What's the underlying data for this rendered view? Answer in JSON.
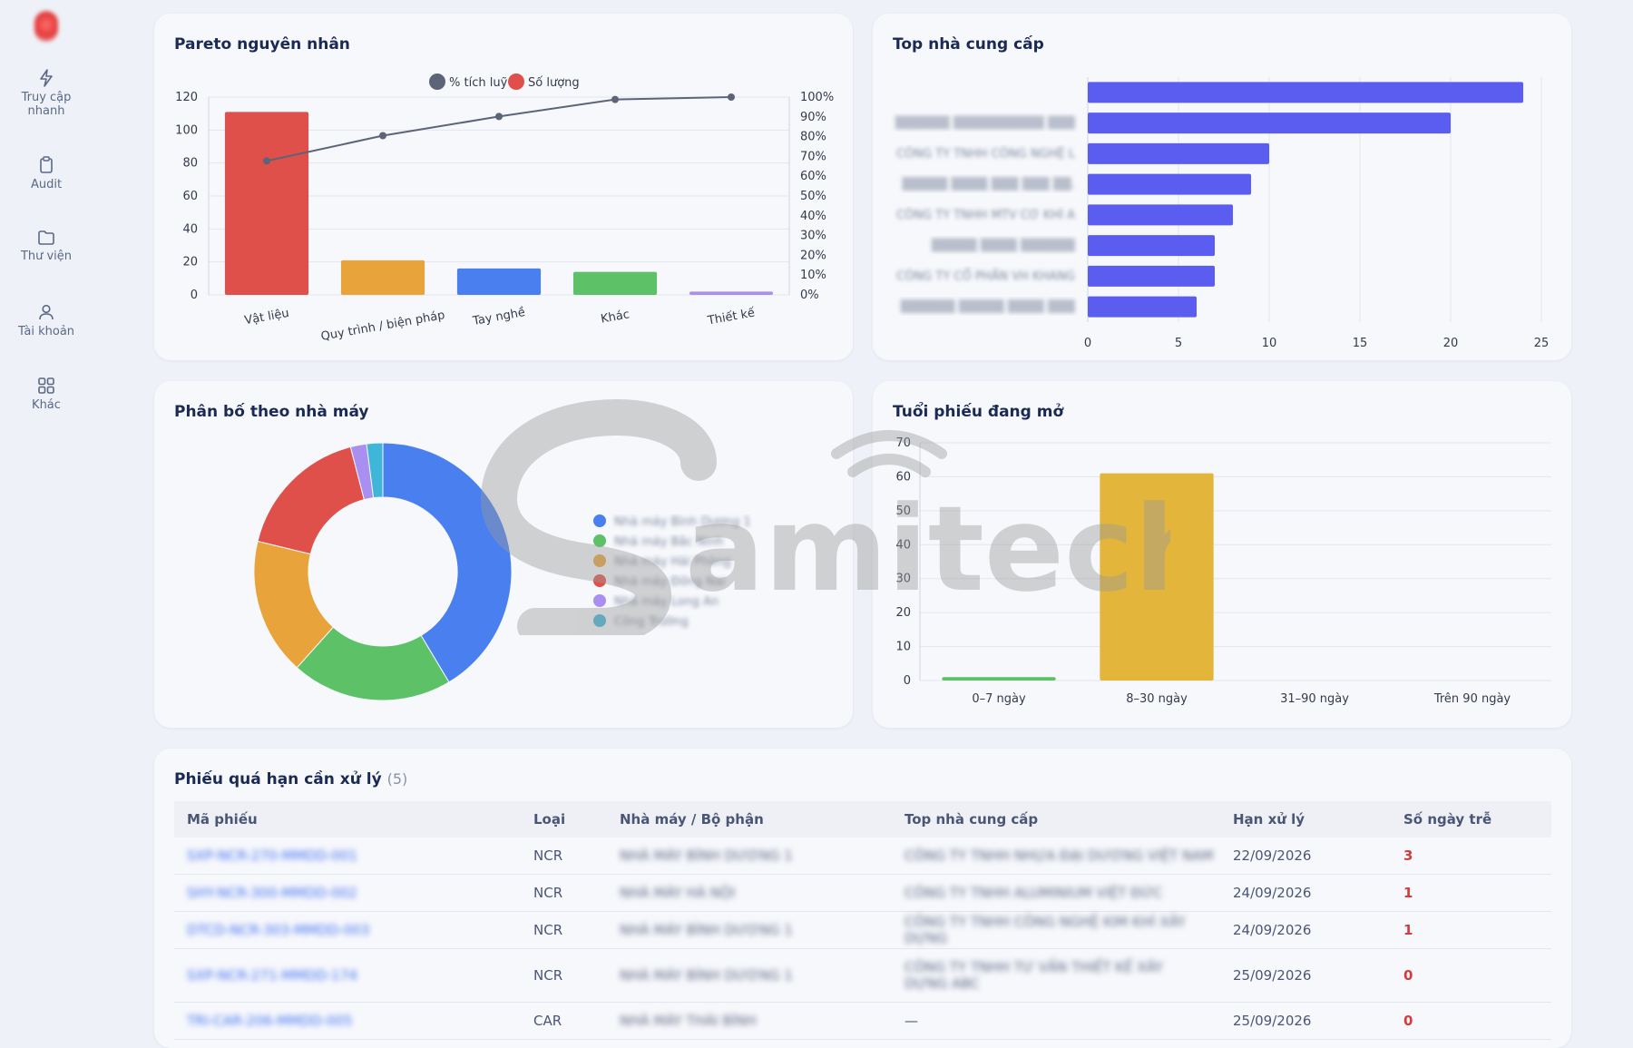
{
  "sidebar": {
    "items": [
      {
        "label": "Truy cập nhanh",
        "icon": "lightning-icon"
      },
      {
        "label": "Audit",
        "icon": "clipboard-icon"
      },
      {
        "label": "Thư viện",
        "icon": "folder-icon"
      },
      {
        "label": "Tài khoản",
        "icon": "user-icon"
      },
      {
        "label": "Khác",
        "icon": "grid-icon"
      }
    ]
  },
  "pareto": {
    "title": "Pareto nguyên nhân",
    "legend": [
      "% tích luỹ",
      "Số lượng"
    ]
  },
  "suppliers": {
    "title": "Top nhà cung cấp",
    "names": [
      "▒▒▒▒▒▒ ▒▒▒▒▒▒▒▒▒▒ ▒▒▒",
      "CÔNG TY TNHH CÔNG NGHỆ L",
      "▒▒▒▒▒ ▒▒▒▒ ▒▒▒ ▒▒▒ ▒▒.",
      "CÔNG TY TNHH MTV CƠ KHÍ A",
      "▒▒▒▒▒ ▒▒▒▒ ▒▒▒▒▒▒",
      "CÔNG TY CỔ PHẦN VH KHANG",
      "▒▒▒▒▒▒ ▒▒▒▒▒ ▒▒▒▒ ▒▒▒"
    ]
  },
  "factory": {
    "title": "Phân bố theo nhà máy",
    "legend": [
      "Nhà máy Bình Dương 1",
      "Nhà máy Bắc Ninh",
      "Nhà máy Hải Phòng",
      "Nhà máy Đồng Nai",
      "Nhà máy Long An",
      "Công Trường"
    ]
  },
  "aging": {
    "title": "Tuổi phiếu đang mở"
  },
  "overdue": {
    "title": "Phiếu quá hạn cần xử lý",
    "count": "(5)",
    "headers": [
      "Mã phiếu",
      "Loại",
      "Nhà máy / Bộ phận",
      "Top nhà cung cấp",
      "Hạn xử lý",
      "Số ngày trễ"
    ],
    "rows": [
      {
        "code": "SXP-NCR-270-MMDD-001",
        "type": "NCR",
        "factory": "NHÀ MÁY BÌNH DƯƠNG 1",
        "supplier": "CÔNG TY TNHH NHỰA ĐẠI DƯƠNG VIỆT NAM",
        "due": "22/09/2026",
        "late": "3"
      },
      {
        "code": "SHY-NCR-300-MMDD-002",
        "type": "NCR",
        "factory": "NHÀ MÁY HÀ NỘI",
        "supplier": "CÔNG TY TNHH ALUMINIUM VIỆT ĐỨC",
        "due": "24/09/2026",
        "late": "1"
      },
      {
        "code": "DTCD-NCR-303-MMDD-003",
        "type": "NCR",
        "factory": "NHÀ MÁY BÌNH DƯƠNG 1",
        "supplier": "CÔNG TY TNHH CÔNG NGHỆ KIM KHÍ XÂY DỰNG",
        "due": "24/09/2026",
        "late": "1"
      },
      {
        "code": "SXP-NCR-271-MMDD-174",
        "type": "NCR",
        "factory": "NHÀ MÁY BÌNH DƯƠNG 1",
        "supplier": "CÔNG TY TNHH TƯ VẤN THIẾT KẾ XÂY DỰNG ABC",
        "due": "25/09/2026",
        "late": "0"
      },
      {
        "code": "TRI-CAR-206-MMDD-005",
        "type": "CAR",
        "factory": "NHÀ MÁY THÁI BÌNH",
        "supplier": "—",
        "due": "25/09/2026",
        "late": "0"
      }
    ]
  },
  "colors": {
    "accent": "#5b5cf0",
    "pareto_bars": [
      "#e0504a",
      "#e8a33a",
      "#4a7ff0",
      "#5cc167",
      "#a990f0"
    ],
    "donut": [
      "#4a7ff0",
      "#5cc167",
      "#e8a33a",
      "#e0504a",
      "#a990f0",
      "#3fb5d9"
    ],
    "aging_bars": [
      "#5cc167",
      "#e3b53b",
      "#4a7ff0",
      "#e0504a"
    ],
    "late": "#d63b3b"
  },
  "chart_data": [
    {
      "type": "bar",
      "categories": [
        "Vật liệu",
        "Quy trình / biện pháp",
        "Tay nghề",
        "Khác",
        "Thiết kế"
      ],
      "series": [
        {
          "name": "Số lượng",
          "values": [
            111,
            21,
            16,
            14,
            2
          ]
        },
        {
          "name": "% tích luỹ",
          "values": [
            67.7,
            80.5,
            90.2,
            98.8,
            100
          ]
        }
      ],
      "title": "Pareto nguyên nhân",
      "ylim": [
        0,
        120
      ],
      "y2lim": [
        0,
        100
      ],
      "yticks": [
        0,
        20,
        40,
        60,
        80,
        100,
        120
      ],
      "y2ticks": [
        "0%",
        "10%",
        "20%",
        "30%",
        "40%",
        "50%",
        "60%",
        "70%",
        "80%",
        "90%",
        "100%"
      ],
      "legend": "top"
    },
    {
      "type": "bar",
      "orientation": "horizontal",
      "categories": [
        "",
        "▒▒▒▒▒▒ ▒▒▒▒▒▒▒▒▒▒ ▒▒▒",
        "CÔNG TY TNHH CÔNG NGHỆ L",
        "▒▒▒▒▒ ▒▒▒▒ ▒▒▒ ▒▒▒ ▒▒.",
        "CÔNG TY TNHH MTV CƠ KHÍ A",
        "▒▒▒▒▒ ▒▒▒▒ ▒▒▒▒▒▒",
        "CÔNG TY CỔ PHẦN VH KHANG",
        "▒▒▒▒▒▒ ▒▒▒▒▒ ▒▒▒▒ ▒▒▒"
      ],
      "values": [
        24,
        20,
        10,
        9,
        8,
        7,
        7,
        6
      ],
      "title": "Top nhà cung cấp",
      "xlim": [
        0,
        25
      ],
      "xticks": [
        0,
        5,
        10,
        15,
        20,
        25
      ]
    },
    {
      "type": "pie",
      "donut": true,
      "values": [
        41,
        20,
        17,
        17,
        2,
        2
      ],
      "title": "Phân bố theo nhà máy",
      "legend": "right"
    },
    {
      "type": "bar",
      "categories": [
        "0–7 ngày",
        "8–30 ngày",
        "31–90 ngày",
        "Trên 90 ngày"
      ],
      "values": [
        1,
        61,
        0,
        0
      ],
      "title": "Tuổi phiếu đang mở",
      "ylim": [
        0,
        70
      ],
      "yticks": [
        0,
        10,
        20,
        30,
        40,
        50,
        60,
        70
      ]
    }
  ]
}
